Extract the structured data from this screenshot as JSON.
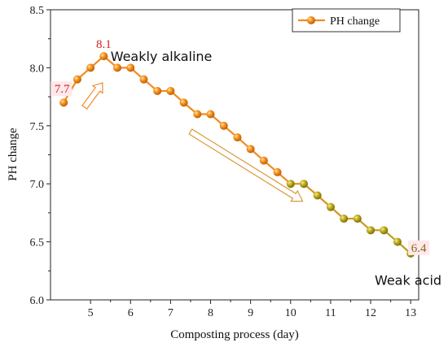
{
  "chart_data": {
    "type": "line",
    "xlabel": "Composting process (day)",
    "ylabel": "PH change",
    "xlim": [
      4,
      13.2
    ],
    "ylim": [
      6.0,
      8.5
    ],
    "xticks": [
      "5",
      "6",
      "7",
      "8",
      "9",
      "10",
      "11",
      "12",
      "13"
    ],
    "yticks": [
      "6.0",
      "6.5",
      "7.0",
      "7.5",
      "8.0",
      "8.5"
    ],
    "legend": {
      "position": "top-right"
    },
    "series": [
      {
        "name": "PH change",
        "color": "#f5891e",
        "end_color": "#b5a21a",
        "x": [
          4.33,
          4.67,
          5.0,
          5.33,
          5.67,
          6.0,
          6.33,
          6.67,
          7.0,
          7.33,
          7.67,
          8.0,
          8.33,
          8.67,
          9.0,
          9.33,
          9.67,
          10.0,
          10.33,
          10.67,
          11.0,
          11.33,
          11.67,
          12.0,
          12.33,
          12.67,
          13.0
        ],
        "y": [
          7.7,
          7.9,
          8.0,
          8.1,
          8.0,
          8.0,
          7.9,
          7.8,
          7.8,
          7.7,
          7.6,
          7.6,
          7.5,
          7.4,
          7.3,
          7.2,
          7.1,
          7.0,
          7.0,
          6.9,
          6.8,
          6.7,
          6.7,
          6.6,
          6.6,
          6.5,
          6.4
        ]
      }
    ],
    "data_labels": [
      {
        "text": "7.7",
        "x": 4.33,
        "y": 7.7,
        "color": "#d62020"
      },
      {
        "text": "8.1",
        "x": 5.33,
        "y": 8.1,
        "color": "#d62020"
      },
      {
        "text": "6.4",
        "x": 13.0,
        "y": 6.4,
        "color": "#8a6a1a"
      }
    ],
    "annotations": [
      {
        "text": "Weakly alkaline",
        "x": 5.5,
        "y": 8.1
      },
      {
        "text": "Weak acid",
        "x": 12.1,
        "y": 6.17
      }
    ]
  }
}
